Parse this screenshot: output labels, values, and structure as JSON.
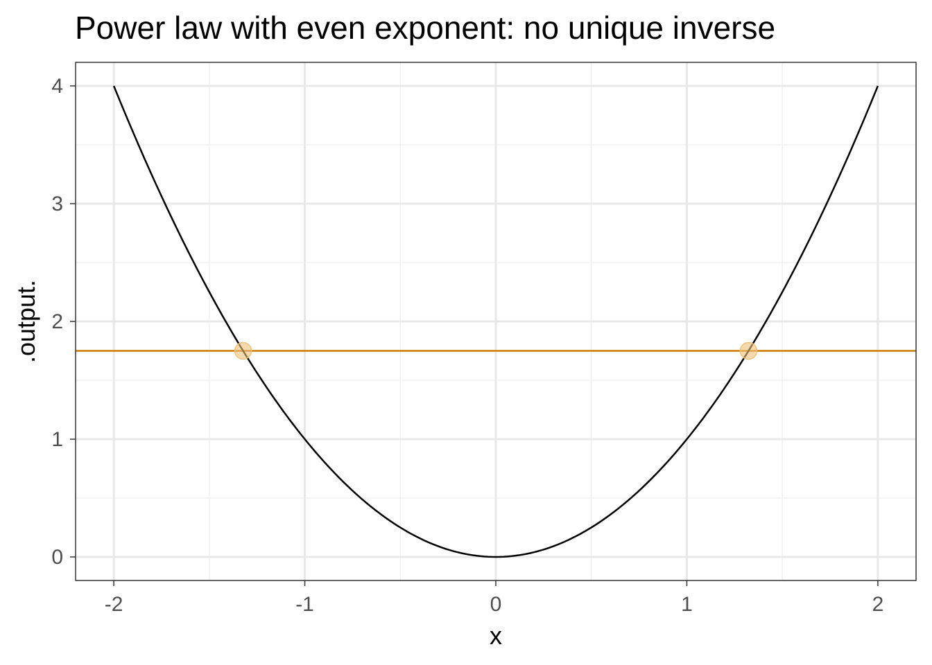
{
  "chart_data": {
    "type": "line",
    "title": "Power law with even exponent: no unique inverse",
    "xlabel": "x",
    "ylabel": ".output.",
    "xlim": [
      -2.2,
      2.2
    ],
    "ylim": [
      -0.2,
      4.2
    ],
    "x_ticks": [
      -2,
      -1,
      0,
      1,
      2
    ],
    "x_tick_labels": [
      "-2",
      "-1",
      "0",
      "1",
      "2"
    ],
    "y_ticks": [
      0,
      1,
      2,
      3,
      4
    ],
    "y_tick_labels": [
      "0",
      "1",
      "2",
      "3",
      "4"
    ],
    "grid": true,
    "series": [
      {
        "function": "x^2",
        "x_range": [
          -2,
          2
        ],
        "color": "#000000"
      }
    ],
    "hline": {
      "y": 1.75,
      "color": "#CC7A00"
    },
    "points": [
      {
        "x": -1.3229,
        "y": 1.75,
        "color": "#F0C27A"
      },
      {
        "x": 1.3229,
        "y": 1.75,
        "color": "#F0C27A"
      }
    ],
    "colors": {
      "panel_border": "#333333",
      "grid_major": "#e8e8e8",
      "grid_minor": "#f0f0f0",
      "tick_text": "#4d4d4d"
    }
  }
}
